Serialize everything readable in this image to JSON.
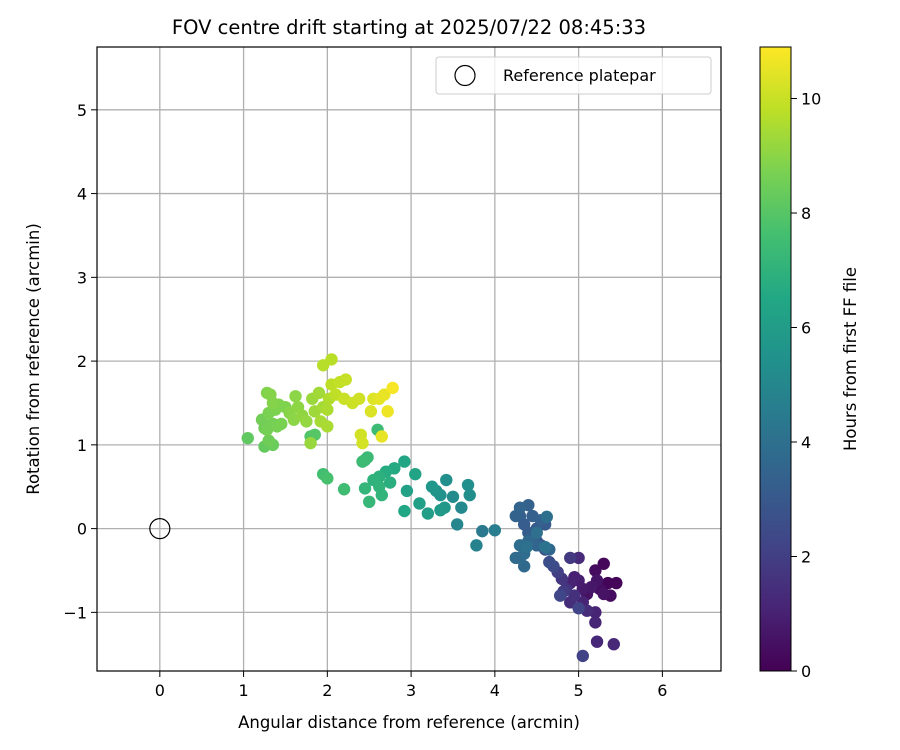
{
  "chart_data": {
    "type": "scatter",
    "title": "FOV centre drift starting at 2025/07/22 08:45:33",
    "xlabel": "Angular distance from reference (arcmin)",
    "ylabel": "Rotation from reference (arcmin)",
    "colorbar_label": "Hours from first FF file",
    "xlim": [
      -0.75,
      6.7
    ],
    "ylim": [
      -1.7,
      5.75
    ],
    "x_ticks": [
      0,
      1,
      2,
      3,
      4,
      5,
      6
    ],
    "y_ticks": [
      -1,
      0,
      1,
      2,
      3,
      4,
      5
    ],
    "x_tick_labels": [
      "0",
      "1",
      "2",
      "3",
      "4",
      "5",
      "6"
    ],
    "y_tick_labels": [
      "−1",
      "0",
      "1",
      "2",
      "3",
      "4",
      "5"
    ],
    "colorbar_range": [
      0,
      10.9
    ],
    "colorbar_ticks": [
      0,
      2,
      4,
      6,
      8,
      10
    ],
    "colorbar_tick_labels": [
      "0",
      "2",
      "4",
      "6",
      "8",
      "10"
    ],
    "colormap": "viridis",
    "grid": true,
    "legend_position": "top-right",
    "legend": [
      {
        "label": "Reference platepar",
        "marker": "open-circle"
      }
    ],
    "reference_point": {
      "x": 0,
      "y": 0
    },
    "points": [
      {
        "x": 5.35,
        "y": -0.65,
        "t": 0.1
      },
      {
        "x": 5.45,
        "y": -0.65,
        "t": 0.15
      },
      {
        "x": 5.3,
        "y": -0.42,
        "t": 0.2
      },
      {
        "x": 5.2,
        "y": -0.5,
        "t": 0.3
      },
      {
        "x": 5.38,
        "y": -0.8,
        "t": 0.35
      },
      {
        "x": 5.25,
        "y": -0.72,
        "t": 0.4
      },
      {
        "x": 5.1,
        "y": -0.78,
        "t": 0.5
      },
      {
        "x": 5.3,
        "y": -0.78,
        "t": 0.55
      },
      {
        "x": 5.22,
        "y": -0.62,
        "t": 0.6
      },
      {
        "x": 5.15,
        "y": -0.7,
        "t": 0.7
      },
      {
        "x": 5.05,
        "y": -0.72,
        "t": 0.8
      },
      {
        "x": 5.0,
        "y": -0.62,
        "t": 0.9
      },
      {
        "x": 4.95,
        "y": -0.58,
        "t": 1.0
      },
      {
        "x": 4.9,
        "y": -0.65,
        "t": 1.05
      },
      {
        "x": 5.05,
        "y": -0.88,
        "t": 1.1
      },
      {
        "x": 5.2,
        "y": -1.0,
        "t": 1.1
      },
      {
        "x": 5.2,
        "y": -1.12,
        "t": 1.15
      },
      {
        "x": 5.22,
        "y": -1.35,
        "t": 1.2
      },
      {
        "x": 5.42,
        "y": -1.38,
        "t": 1.25
      },
      {
        "x": 5.0,
        "y": -0.35,
        "t": 1.3
      },
      {
        "x": 5.1,
        "y": -0.98,
        "t": 1.35
      },
      {
        "x": 4.9,
        "y": -0.88,
        "t": 1.4
      },
      {
        "x": 4.95,
        "y": -0.8,
        "t": 1.5
      },
      {
        "x": 4.85,
        "y": -0.72,
        "t": 1.6
      },
      {
        "x": 4.8,
        "y": -0.6,
        "t": 1.7
      },
      {
        "x": 4.9,
        "y": -0.35,
        "t": 1.8
      },
      {
        "x": 4.82,
        "y": -0.75,
        "t": 1.9
      },
      {
        "x": 4.75,
        "y": -0.52,
        "t": 2.0
      },
      {
        "x": 5.05,
        "y": -1.52,
        "t": 2.1
      },
      {
        "x": 5.0,
        "y": -0.95,
        "t": 2.2
      },
      {
        "x": 4.78,
        "y": -0.8,
        "t": 2.3
      },
      {
        "x": 4.7,
        "y": -0.45,
        "t": 2.45
      },
      {
        "x": 4.65,
        "y": -0.4,
        "t": 2.6
      },
      {
        "x": 4.6,
        "y": -0.25,
        "t": 2.7
      },
      {
        "x": 4.55,
        "y": -0.2,
        "t": 2.8
      },
      {
        "x": 4.5,
        "y": -0.15,
        "t": 2.9
      },
      {
        "x": 4.45,
        "y": -0.1,
        "t": 3.0
      },
      {
        "x": 4.5,
        "y": 0.0,
        "t": 3.05
      },
      {
        "x": 4.6,
        "y": 0.05,
        "t": 3.1
      },
      {
        "x": 4.4,
        "y": -0.05,
        "t": 3.15
      },
      {
        "x": 4.35,
        "y": 0.05,
        "t": 3.2
      },
      {
        "x": 4.3,
        "y": 0.15,
        "t": 3.25
      },
      {
        "x": 4.45,
        "y": 0.15,
        "t": 3.3
      },
      {
        "x": 4.55,
        "y": 0.1,
        "t": 3.35
      },
      {
        "x": 4.4,
        "y": 0.28,
        "t": 3.4
      },
      {
        "x": 4.25,
        "y": 0.15,
        "t": 3.45
      },
      {
        "x": 4.3,
        "y": 0.25,
        "t": 3.5
      },
      {
        "x": 4.5,
        "y": -0.2,
        "t": 3.55
      },
      {
        "x": 4.65,
        "y": -0.25,
        "t": 3.6
      },
      {
        "x": 4.4,
        "y": -0.15,
        "t": 3.65
      },
      {
        "x": 4.35,
        "y": -0.45,
        "t": 3.7
      },
      {
        "x": 4.3,
        "y": -0.35,
        "t": 3.75
      },
      {
        "x": 4.25,
        "y": -0.35,
        "t": 3.8
      },
      {
        "x": 4.35,
        "y": -0.3,
        "t": 3.85
      },
      {
        "x": 4.3,
        "y": -0.2,
        "t": 3.9
      },
      {
        "x": 4.62,
        "y": 0.14,
        "t": 3.95
      },
      {
        "x": 4.5,
        "y": -0.05,
        "t": 4.0
      },
      {
        "x": 4.38,
        "y": -0.22,
        "t": 4.05
      },
      {
        "x": 4.6,
        "y": -0.22,
        "t": 4.1
      },
      {
        "x": 3.85,
        "y": -0.03,
        "t": 4.4
      },
      {
        "x": 4.0,
        "y": -0.02,
        "t": 4.6
      },
      {
        "x": 3.78,
        "y": -0.2,
        "t": 4.8
      },
      {
        "x": 3.55,
        "y": 0.05,
        "t": 5.0
      },
      {
        "x": 3.6,
        "y": 0.25,
        "t": 5.1
      },
      {
        "x": 3.5,
        "y": 0.38,
        "t": 5.2
      },
      {
        "x": 3.7,
        "y": 0.4,
        "t": 5.3
      },
      {
        "x": 3.68,
        "y": 0.52,
        "t": 5.35
      },
      {
        "x": 3.42,
        "y": 0.58,
        "t": 5.4
      },
      {
        "x": 3.35,
        "y": 0.4,
        "t": 5.5
      },
      {
        "x": 3.3,
        "y": 0.45,
        "t": 5.6
      },
      {
        "x": 3.25,
        "y": 0.5,
        "t": 5.7
      },
      {
        "x": 3.4,
        "y": 0.25,
        "t": 5.8
      },
      {
        "x": 3.35,
        "y": 0.22,
        "t": 5.9
      },
      {
        "x": 3.2,
        "y": 0.18,
        "t": 6.0
      },
      {
        "x": 3.1,
        "y": 0.3,
        "t": 6.1
      },
      {
        "x": 2.95,
        "y": 0.45,
        "t": 6.2
      },
      {
        "x": 3.05,
        "y": 0.65,
        "t": 6.3
      },
      {
        "x": 2.92,
        "y": 0.8,
        "t": 6.4
      },
      {
        "x": 2.92,
        "y": 0.21,
        "t": 6.5
      },
      {
        "x": 2.8,
        "y": 0.72,
        "t": 6.6
      },
      {
        "x": 2.7,
        "y": 0.68,
        "t": 6.7
      },
      {
        "x": 2.75,
        "y": 0.55,
        "t": 6.8
      },
      {
        "x": 2.62,
        "y": 0.62,
        "t": 6.9
      },
      {
        "x": 2.55,
        "y": 0.58,
        "t": 7.0
      },
      {
        "x": 2.62,
        "y": 0.5,
        "t": 7.05
      },
      {
        "x": 2.65,
        "y": 0.4,
        "t": 7.1
      },
      {
        "x": 2.45,
        "y": 0.48,
        "t": 7.15
      },
      {
        "x": 2.5,
        "y": 0.32,
        "t": 7.2
      },
      {
        "x": 2.45,
        "y": 0.82,
        "t": 7.3
      },
      {
        "x": 2.48,
        "y": 0.85,
        "t": 7.35
      },
      {
        "x": 2.42,
        "y": 0.8,
        "t": 7.4
      },
      {
        "x": 2.6,
        "y": 1.18,
        "t": 7.45
      },
      {
        "x": 2.2,
        "y": 0.47,
        "t": 7.5
      },
      {
        "x": 1.95,
        "y": 0.65,
        "t": 7.6
      },
      {
        "x": 2.0,
        "y": 0.6,
        "t": 7.7
      },
      {
        "x": 1.8,
        "y": 1.1,
        "t": 7.9
      },
      {
        "x": 1.85,
        "y": 1.12,
        "t": 8.0
      },
      {
        "x": 1.05,
        "y": 1.08,
        "t": 8.2
      },
      {
        "x": 1.25,
        "y": 0.98,
        "t": 8.3
      },
      {
        "x": 1.35,
        "y": 1.0,
        "t": 8.4
      },
      {
        "x": 1.3,
        "y": 1.05,
        "t": 8.5
      },
      {
        "x": 1.25,
        "y": 1.2,
        "t": 8.5
      },
      {
        "x": 1.22,
        "y": 1.3,
        "t": 8.55
      },
      {
        "x": 1.28,
        "y": 1.18,
        "t": 8.6
      },
      {
        "x": 1.35,
        "y": 1.25,
        "t": 8.6
      },
      {
        "x": 1.4,
        "y": 1.22,
        "t": 8.65
      },
      {
        "x": 1.45,
        "y": 1.25,
        "t": 8.7
      },
      {
        "x": 1.3,
        "y": 1.38,
        "t": 8.7
      },
      {
        "x": 1.38,
        "y": 1.42,
        "t": 8.75
      },
      {
        "x": 1.42,
        "y": 1.48,
        "t": 8.8
      },
      {
        "x": 1.5,
        "y": 1.45,
        "t": 8.8
      },
      {
        "x": 1.28,
        "y": 1.62,
        "t": 8.85
      },
      {
        "x": 1.32,
        "y": 1.6,
        "t": 8.9
      },
      {
        "x": 1.35,
        "y": 1.5,
        "t": 8.9
      },
      {
        "x": 1.55,
        "y": 1.38,
        "t": 8.95
      },
      {
        "x": 1.6,
        "y": 1.3,
        "t": 9.0
      },
      {
        "x": 1.62,
        "y": 1.58,
        "t": 9.0
      },
      {
        "x": 1.65,
        "y": 1.45,
        "t": 9.05
      },
      {
        "x": 1.7,
        "y": 1.35,
        "t": 9.1
      },
      {
        "x": 1.75,
        "y": 1.28,
        "t": 9.15
      },
      {
        "x": 1.8,
        "y": 1.02,
        "t": 9.2
      },
      {
        "x": 1.82,
        "y": 1.55,
        "t": 9.25
      },
      {
        "x": 1.85,
        "y": 1.4,
        "t": 9.3
      },
      {
        "x": 1.9,
        "y": 1.62,
        "t": 9.35
      },
      {
        "x": 1.95,
        "y": 1.45,
        "t": 9.4
      },
      {
        "x": 1.92,
        "y": 1.28,
        "t": 9.45
      },
      {
        "x": 2.0,
        "y": 1.22,
        "t": 9.5
      },
      {
        "x": 2.0,
        "y": 1.42,
        "t": 9.55
      },
      {
        "x": 2.02,
        "y": 1.55,
        "t": 9.6
      },
      {
        "x": 1.95,
        "y": 1.95,
        "t": 9.7
      },
      {
        "x": 2.05,
        "y": 2.02,
        "t": 9.75
      },
      {
        "x": 2.05,
        "y": 1.72,
        "t": 9.8
      },
      {
        "x": 2.1,
        "y": 1.6,
        "t": 9.85
      },
      {
        "x": 2.15,
        "y": 1.75,
        "t": 9.9
      },
      {
        "x": 2.22,
        "y": 1.78,
        "t": 9.95
      },
      {
        "x": 2.2,
        "y": 1.55,
        "t": 10.0
      },
      {
        "x": 2.3,
        "y": 1.5,
        "t": 10.05
      },
      {
        "x": 2.38,
        "y": 1.55,
        "t": 10.1
      },
      {
        "x": 2.4,
        "y": 1.12,
        "t": 10.15
      },
      {
        "x": 2.42,
        "y": 1.02,
        "t": 10.2
      },
      {
        "x": 2.52,
        "y": 1.4,
        "t": 10.3
      },
      {
        "x": 2.55,
        "y": 1.55,
        "t": 10.35
      },
      {
        "x": 2.62,
        "y": 1.55,
        "t": 10.45
      },
      {
        "x": 2.65,
        "y": 1.1,
        "t": 10.5
      },
      {
        "x": 2.68,
        "y": 1.6,
        "t": 10.55
      },
      {
        "x": 2.72,
        "y": 1.4,
        "t": 10.65
      },
      {
        "x": 2.78,
        "y": 1.68,
        "t": 10.8
      }
    ]
  }
}
